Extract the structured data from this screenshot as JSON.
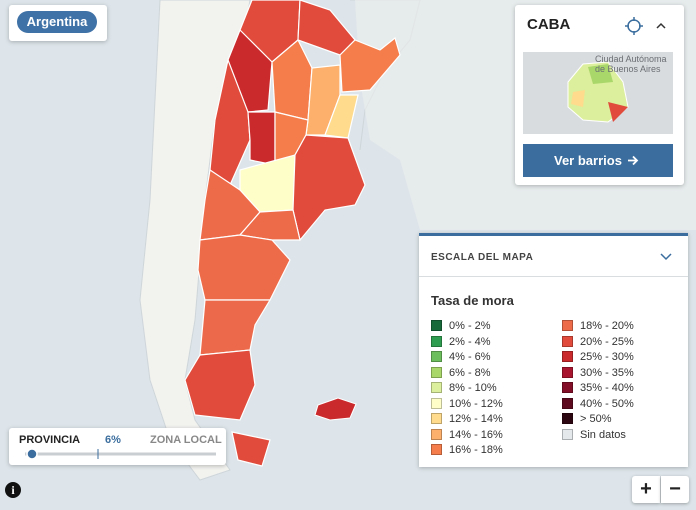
{
  "country_button": "Argentina",
  "caba_panel": {
    "title": "CABA",
    "minimap_label": "Ciudad Autónoma de Buenos Aires",
    "button": "Ver barrios"
  },
  "legend": {
    "header": "ESCALA DEL MAPA",
    "title": "Tasa de mora",
    "items": [
      {
        "label": "0% - 2%",
        "color": "#17693a"
      },
      {
        "label": "2% - 4%",
        "color": "#2f9d4f"
      },
      {
        "label": "4% - 6%",
        "color": "#6cbd5c"
      },
      {
        "label": "6% - 8%",
        "color": "#a9d76a"
      },
      {
        "label": "8% - 10%",
        "color": "#dcef9c"
      },
      {
        "label": "10% - 12%",
        "color": "#fefec8"
      },
      {
        "label": "12% - 14%",
        "color": "#fedb8d"
      },
      {
        "label": "14% - 16%",
        "color": "#fcb06c"
      },
      {
        "label": "16% - 18%",
        "color": "#f47d4b"
      },
      {
        "label": "18% - 20%",
        "color": "#ee6b4a"
      },
      {
        "label": "20% - 25%",
        "color": "#e04b3b"
      },
      {
        "label": "25% - 30%",
        "color": "#cb2a2c"
      },
      {
        "label": "30% - 35%",
        "color": "#a8152f"
      },
      {
        "label": "35% - 40%",
        "color": "#820e27"
      },
      {
        "label": "40% - 50%",
        "color": "#5e0a1e"
      },
      {
        "label": "> 50%",
        "color": "#2c0611"
      },
      {
        "label": "Sin datos",
        "color": "#e4e8eb"
      }
    ]
  },
  "slider": {
    "left_label": "PROVINCIA",
    "value": "6%",
    "right_label": "ZONA LOCAL"
  },
  "zoom": {
    "in": "+",
    "out": "−"
  },
  "info_icon": "i"
}
